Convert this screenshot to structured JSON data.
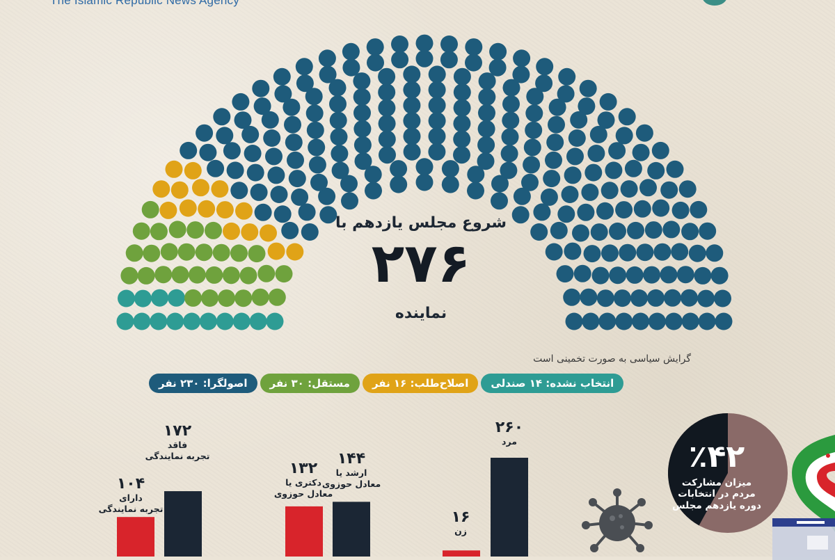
{
  "header": {
    "agency_name": "The Islamic Republic News Agency"
  },
  "title": {
    "line1": "شروع مجلس یازدهم با",
    "number": "۲۷۶",
    "line2": "نماینده"
  },
  "note": "گرایش سیاسی به صورت تخمینی است",
  "legend": [
    {
      "label": "اصولگرا: ۲۳۰ نفر",
      "color": "#1e5b7b"
    },
    {
      "label": "مستقل: ۳۰ نفر",
      "color": "#6fa23d"
    },
    {
      "label": "اصلاح‌طلب: ۱۶ نفر",
      "color": "#e0a317"
    },
    {
      "label": "انتخاب نشده: ۱۴ صندلی",
      "color": "#2e9c94"
    }
  ],
  "chart_data": [
    {
      "type": "parliament",
      "total_seats": 290,
      "series": [
        {
          "name": "اصولگرا",
          "value": 230,
          "color": "#1e5b7b"
        },
        {
          "name": "مستقل",
          "value": 30,
          "color": "#6fa23d"
        },
        {
          "name": "اصلاح‌طلب",
          "value": 16,
          "color": "#e0a317"
        },
        {
          "name": "انتخاب نشده",
          "value": 14,
          "color": "#2e9c94"
        }
      ]
    },
    {
      "type": "bar",
      "categories": [
        "دارای تجربه نمایندگی",
        "فاقد تجربه نمایندگی"
      ],
      "values": [
        104,
        172
      ],
      "value_labels": [
        "۱۰۴",
        "۱۷۲"
      ],
      "captions": [
        [
          "دارای",
          "تجربه نمایندگی"
        ],
        [
          "فاقد",
          "تجربه نمایندگی"
        ]
      ],
      "colors": [
        "#d8242b",
        "#1b2634"
      ]
    },
    {
      "type": "bar",
      "categories": [
        "دکتری یا معادل حوزوی",
        "ارشد یا معادل حوزوی"
      ],
      "values": [
        132,
        144
      ],
      "value_labels": [
        "۱۳۲",
        "۱۴۴"
      ],
      "captions": [
        [
          "دکتری یا",
          "معادل حوزوی"
        ],
        [
          "ارشد یا",
          "معادل حوزوی"
        ]
      ],
      "colors": [
        "#d8242b",
        "#1b2634"
      ]
    },
    {
      "type": "bar",
      "categories": [
        "زن",
        "مرد"
      ],
      "values": [
        16,
        260
      ],
      "value_labels": [
        "۱۶",
        "۲۶۰"
      ],
      "captions": [
        [
          "زن"
        ],
        [
          "مرد"
        ]
      ],
      "colors": [
        "#d8242b",
        "#1b2634"
      ]
    },
    {
      "type": "pie",
      "value_percent": 42,
      "label": "٪۴۲",
      "caption": [
        "میزان مشارکت",
        "مردم در انتخابات",
        "دوره یازدهم مجلس"
      ],
      "colors": {
        "filled": "#111820",
        "rest": "#8a6a68"
      }
    }
  ],
  "colors": {
    "background": "#ebe4d7",
    "bar_red": "#d8242b",
    "bar_dark": "#1b2634"
  }
}
